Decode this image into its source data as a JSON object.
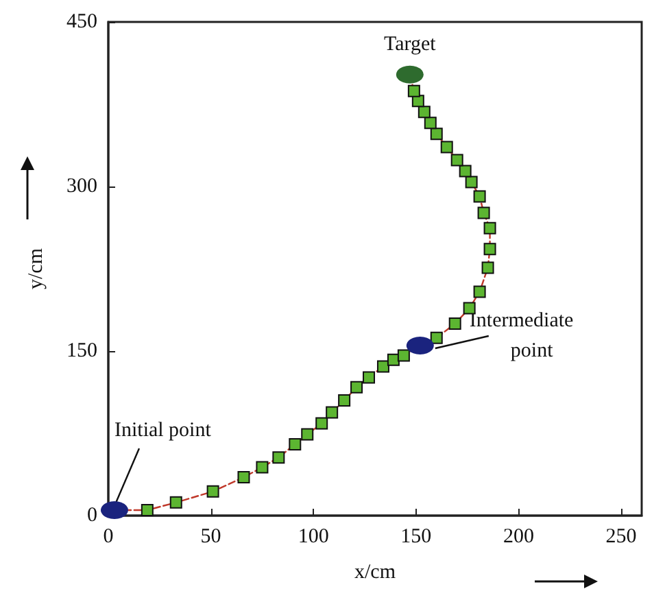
{
  "chart_data": {
    "type": "line",
    "xlabel": "x/cm",
    "ylabel": "y/cm",
    "xlim": [
      0,
      260
    ],
    "ylim": [
      0,
      450
    ],
    "xticks": [
      0,
      50,
      100,
      150,
      200,
      250
    ],
    "yticks": [
      0,
      150,
      300,
      450
    ],
    "grid": false,
    "series": [
      {
        "color": "#5cb531",
        "marker": "square",
        "line_style": "dashed",
        "x": [
          3,
          19,
          33,
          51,
          66,
          75,
          83,
          91,
          97,
          104,
          109,
          115,
          121,
          127,
          134,
          139,
          144,
          152,
          160,
          169,
          176,
          181,
          185,
          186,
          186,
          183,
          181,
          177,
          174,
          170,
          165,
          160,
          157,
          154,
          151,
          149,
          147
        ],
        "values": [
          5,
          5,
          12,
          22,
          35,
          44,
          53,
          65,
          74,
          84,
          94,
          105,
          117,
          126,
          136,
          142,
          146,
          155,
          162,
          175,
          189,
          204,
          226,
          243,
          262,
          276,
          291,
          304,
          314,
          324,
          336,
          348,
          358,
          368,
          378,
          387,
          402
        ]
      },
      {
        "type": "scatter",
        "marker": "circle",
        "colors": [
          "#1a237e",
          "#1a237e",
          "#2e6b2e"
        ],
        "x": [
          3,
          152,
          147
        ],
        "values": [
          5,
          155,
          402
        ]
      }
    ],
    "annotations": [
      {
        "text": "Initial point",
        "x": 3,
        "y": 5
      },
      {
        "text": "Intermediate point",
        "x": 152,
        "y": 155
      },
      {
        "text": "Target",
        "x": 147,
        "y": 402
      }
    ]
  }
}
